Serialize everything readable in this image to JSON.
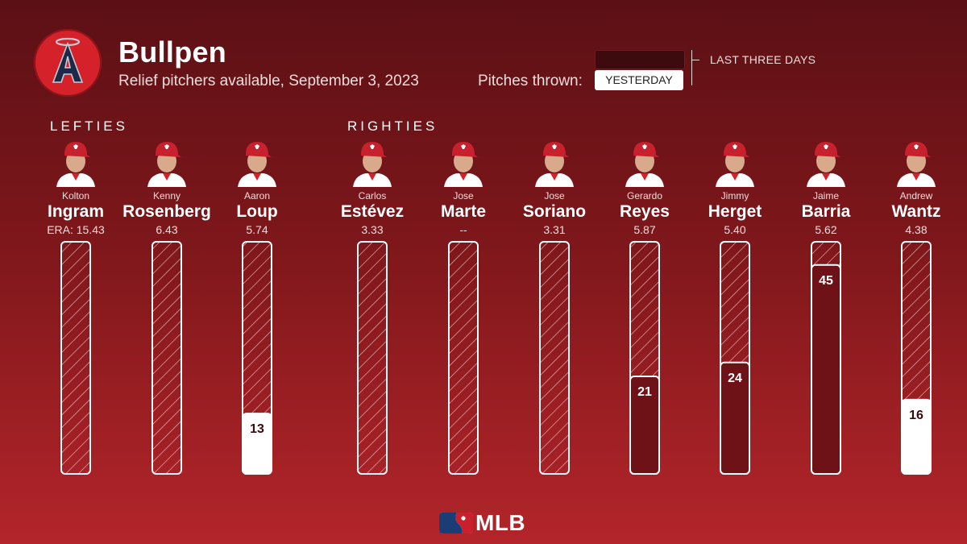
{
  "header": {
    "title": "Bullpen",
    "subtitle": "Relief pitchers available, September 3, 2023",
    "pitches_label": "Pitches thrown:",
    "legend_yesterday": "YESTERDAY",
    "legend_three_days": "LAST THREE DAYS"
  },
  "sections": {
    "lefties": "LEFTIES",
    "righties": "RIGHTIES"
  },
  "footer": {
    "brand": "MLB"
  },
  "colors": {
    "yesterday": "#ffffff",
    "last_three_days": "#6e1217",
    "hatch": "#e8b7b9"
  },
  "chart_data": {
    "type": "bar",
    "ylim": [
      0,
      50
    ],
    "series": [
      {
        "name": "YESTERDAY",
        "values": [
          0,
          0,
          13,
          0,
          0,
          0,
          0,
          0,
          0,
          16
        ]
      },
      {
        "name": "LAST THREE DAYS",
        "values": [
          0,
          0,
          0,
          0,
          0,
          0,
          21,
          24,
          45,
          0
        ]
      }
    ],
    "labels": [
      "",
      "",
      "13",
      "",
      "",
      "",
      "21",
      "24",
      "45",
      "16"
    ],
    "players": [
      {
        "first": "Kolton",
        "last": "Ingram",
        "era": "ERA: 15.43",
        "hand": "L"
      },
      {
        "first": "Kenny",
        "last": "Rosenberg",
        "era": "6.43",
        "hand": "L"
      },
      {
        "first": "Aaron",
        "last": "Loup",
        "era": "5.74",
        "hand": "L"
      },
      {
        "first": "Carlos",
        "last": "Estévez",
        "era": "3.33",
        "hand": "R"
      },
      {
        "first": "Jose",
        "last": "Marte",
        "era": "--",
        "hand": "R"
      },
      {
        "first": "Jose",
        "last": "Soriano",
        "era": "3.31",
        "hand": "R"
      },
      {
        "first": "Gerardo",
        "last": "Reyes",
        "era": "5.87",
        "hand": "R"
      },
      {
        "first": "Jimmy",
        "last": "Herget",
        "era": "5.40",
        "hand": "R"
      },
      {
        "first": "Jaime",
        "last": "Barria",
        "era": "5.62",
        "hand": "R"
      },
      {
        "first": "Andrew",
        "last": "Wantz",
        "era": "4.38",
        "hand": "R"
      }
    ]
  }
}
